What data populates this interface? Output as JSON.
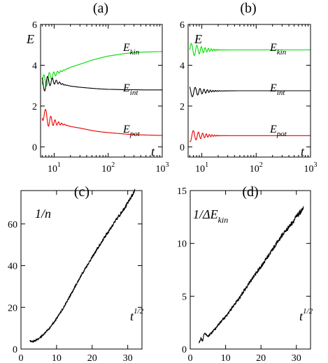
{
  "chart_data": [
    {
      "panel": "(a)",
      "type": "line",
      "x_scale": "log",
      "xlim": [
        5.6,
        1000
      ],
      "ylim": [
        -0.5,
        6
      ],
      "y_ticks": [
        "0",
        "2",
        "4",
        "6"
      ],
      "x_ticks": [
        {
          "base": "10",
          "exp": "1"
        },
        {
          "base": "10",
          "exp": "2"
        },
        {
          "base": "10",
          "exp": "3"
        }
      ],
      "ylabel": "E",
      "xlabel": "t",
      "series": [
        {
          "name": "Ekin",
          "sub": "kin",
          "color": "#00dd00",
          "osc_amp": 0.45,
          "osc_decay": 0.32,
          "x": [
            6,
            7,
            8,
            9,
            10,
            12,
            15,
            20,
            30,
            50,
            70,
            100,
            150,
            200,
            300,
            500,
            700,
            1000
          ],
          "y": [
            3.05,
            3.25,
            3.4,
            3.5,
            3.55,
            3.65,
            3.75,
            3.9,
            4.05,
            4.25,
            4.35,
            4.45,
            4.52,
            4.57,
            4.62,
            4.65,
            4.66,
            4.67
          ]
        },
        {
          "name": "Eint",
          "sub": "int",
          "color": "#000000",
          "osc_amp": 0.45,
          "osc_decay": 0.32,
          "x": [
            6,
            7,
            8,
            9,
            10,
            12,
            15,
            20,
            30,
            50,
            70,
            100,
            150,
            200,
            300,
            500,
            700,
            1000
          ],
          "y": [
            3.0,
            3.15,
            3.2,
            3.22,
            3.2,
            3.15,
            3.05,
            2.98,
            2.92,
            2.87,
            2.84,
            2.82,
            2.81,
            2.8,
            2.8,
            2.79,
            2.79,
            2.79
          ]
        },
        {
          "name": "Epot",
          "sub": "pot",
          "color": "#ee0000",
          "osc_amp": 0.55,
          "osc_decay": 0.32,
          "x": [
            6,
            7,
            8,
            9,
            10,
            12,
            15,
            20,
            30,
            50,
            70,
            100,
            150,
            200,
            300,
            500,
            700,
            1000
          ],
          "y": [
            1.9,
            1.4,
            1.3,
            1.25,
            1.2,
            1.15,
            1.1,
            1.0,
            0.92,
            0.8,
            0.74,
            0.7,
            0.66,
            0.63,
            0.6,
            0.58,
            0.57,
            0.56
          ]
        }
      ]
    },
    {
      "panel": "(b)",
      "type": "line",
      "x_scale": "log",
      "xlim": [
        5.6,
        1000
      ],
      "ylim": [
        -0.5,
        6
      ],
      "y_ticks": [
        "0",
        "2",
        "4",
        "6"
      ],
      "x_ticks": [
        {
          "base": "10",
          "exp": "1"
        },
        {
          "base": "10",
          "exp": "2"
        },
        {
          "base": "10",
          "exp": "3"
        }
      ],
      "ylabel": "E",
      "xlabel": "t",
      "series": [
        {
          "name": "Ekin",
          "sub": "kin",
          "color": "#00dd00",
          "osc_amp": 0.35,
          "osc_decay": 0.2,
          "x": [
            6,
            10,
            20,
            50,
            100,
            300,
            1000
          ],
          "y": [
            4.75,
            4.75,
            4.75,
            4.75,
            4.75,
            4.75,
            4.75
          ]
        },
        {
          "name": "Eint",
          "sub": "int",
          "color": "#000000",
          "osc_amp": 0.28,
          "osc_decay": 0.2,
          "x": [
            6,
            10,
            20,
            50,
            100,
            300,
            1000
          ],
          "y": [
            2.7,
            2.72,
            2.74,
            2.75,
            2.75,
            2.75,
            2.75
          ]
        },
        {
          "name": "Epot",
          "sub": "pot",
          "color": "#ee0000",
          "osc_amp": 0.3,
          "osc_decay": 0.2,
          "x": [
            6,
            10,
            20,
            50,
            100,
            300,
            1000
          ],
          "y": [
            0.55,
            0.55,
            0.55,
            0.55,
            0.55,
            0.55,
            0.55
          ]
        }
      ]
    },
    {
      "panel": "(c)",
      "type": "line",
      "x_scale": "linear",
      "xlim": [
        0,
        34
      ],
      "ylim": [
        0,
        76
      ],
      "x_ticks": [
        "0",
        "10",
        "20",
        "30"
      ],
      "y_ticks": [
        "0",
        "20",
        "40",
        "60"
      ],
      "ylabel": "1/n",
      "xlabel_base": "t",
      "xlabel_exp": "1/2",
      "series": [
        {
          "color": "#000000",
          "noise": 0.9,
          "x": [
            2.5,
            3,
            4,
            5,
            6,
            8,
            10,
            12,
            14,
            16,
            18,
            20,
            22,
            24,
            26,
            28,
            30,
            32
          ],
          "y": [
            4,
            3.5,
            4,
            5,
            6.5,
            10,
            14.5,
            20,
            26,
            32.5,
            38.5,
            44,
            49.5,
            55,
            60,
            65,
            70,
            76
          ]
        }
      ]
    },
    {
      "panel": "(d)",
      "type": "line",
      "x_scale": "linear",
      "xlim": [
        0,
        34
      ],
      "ylim": [
        0,
        15
      ],
      "x_ticks": [
        "0",
        "10",
        "20",
        "30"
      ],
      "y_ticks": [
        "0",
        "5",
        "10",
        "15"
      ],
      "ylabel": "1/ΔE",
      "ylabel_sub": "kin",
      "xlabel_base": "t",
      "xlabel_exp": "1/2",
      "series": [
        {
          "color": "#000000",
          "noise": 0.25,
          "x": [
            2.5,
            3,
            3.5,
            4,
            5,
            6,
            8,
            10,
            12,
            14,
            16,
            18,
            20,
            22,
            24,
            26,
            28,
            30,
            32
          ],
          "y": [
            0.6,
            1.0,
            0.8,
            1.5,
            1.2,
            1.5,
            2.3,
            3.1,
            4.0,
            4.9,
            5.9,
            6.9,
            7.8,
            8.8,
            9.8,
            10.8,
            11.6,
            12.5,
            13.3
          ]
        }
      ]
    }
  ]
}
